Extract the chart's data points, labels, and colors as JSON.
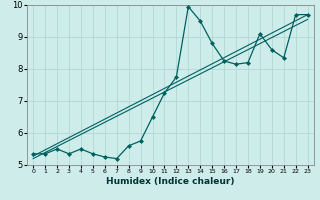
{
  "title": "",
  "xlabel": "Humidex (Indice chaleur)",
  "ylabel": "",
  "background_color": "#ceecea",
  "grid_color": "#b0d8d4",
  "line_color": "#006060",
  "xlim": [
    -0.5,
    23.5
  ],
  "ylim": [
    5,
    10
  ],
  "xticks": [
    0,
    1,
    2,
    3,
    4,
    5,
    6,
    7,
    8,
    9,
    10,
    11,
    12,
    13,
    14,
    15,
    16,
    17,
    18,
    19,
    20,
    21,
    22,
    23
  ],
  "yticks": [
    5,
    6,
    7,
    8,
    9,
    10
  ],
  "line1_x": [
    0,
    1,
    2,
    3,
    4,
    5,
    6,
    7,
    8,
    9,
    10,
    11,
    12,
    13,
    14,
    15,
    16,
    17,
    18,
    19,
    20,
    21,
    22,
    23
  ],
  "line1_y": [
    5.35,
    5.35,
    5.5,
    5.35,
    5.5,
    5.35,
    5.25,
    5.2,
    5.6,
    5.75,
    6.5,
    7.25,
    7.75,
    9.95,
    9.5,
    8.8,
    8.25,
    8.15,
    8.2,
    9.1,
    8.6,
    8.35,
    9.7,
    9.7
  ],
  "line2_x": [
    0,
    23
  ],
  "line2_y": [
    5.2,
    9.55
  ],
  "line3_x": [
    0,
    23
  ],
  "line3_y": [
    5.28,
    9.7
  ]
}
